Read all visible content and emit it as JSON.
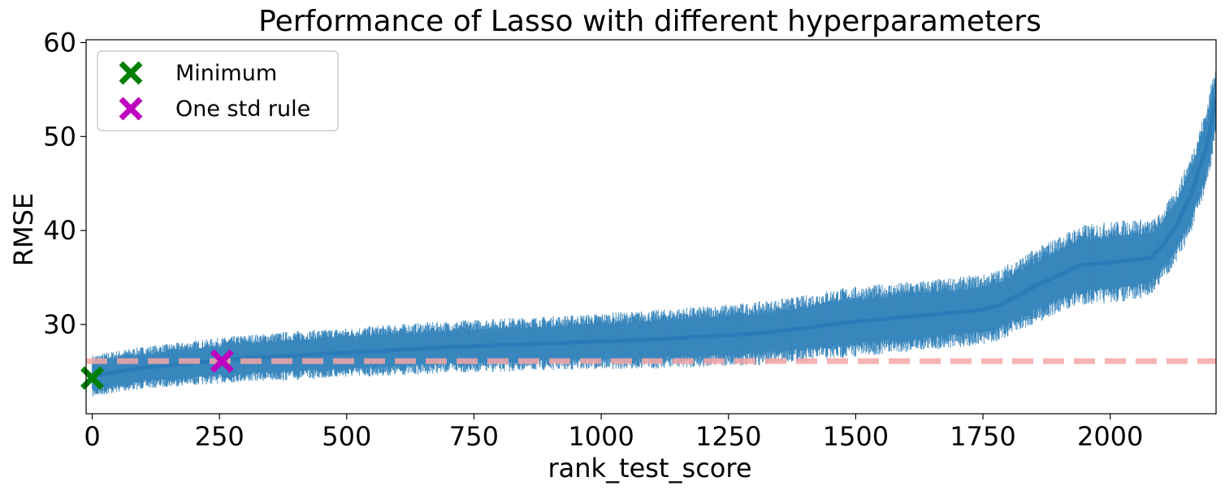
{
  "chart_data": {
    "type": "line",
    "title": "Performance of Lasso with different hyperparameters",
    "xlabel": "rank_test_score",
    "ylabel": "RMSE",
    "xlim": [
      -12,
      2208
    ],
    "ylim": [
      20.5,
      60.3
    ],
    "xticks": [
      0,
      250,
      500,
      750,
      1000,
      1250,
      1500,
      1750,
      2000
    ],
    "yticks": [
      30,
      40,
      50,
      60
    ],
    "grid": false,
    "legend": {
      "placement": "top-left",
      "entries": [
        {
          "label": "Minimum",
          "marker": "x",
          "color": "#008000"
        },
        {
          "label": "One std rule",
          "marker": "x",
          "color": "#bf00bf"
        }
      ]
    },
    "series": [
      {
        "kind": "errorbar-line",
        "color": "#1f77b4",
        "x": [
          0,
          50,
          100,
          200,
          300,
          400,
          500,
          600,
          700,
          800,
          900,
          1000,
          1100,
          1200,
          1300,
          1400,
          1450,
          1500,
          1600,
          1700,
          1750,
          1780,
          1850,
          1900,
          1940,
          2000,
          2050,
          2080,
          2100,
          2130,
          2160,
          2190,
          2208
        ],
        "y": [
          24.5,
          25.0,
          25.4,
          25.9,
          26.4,
          26.7,
          27.0,
          27.3,
          27.6,
          27.8,
          28.0,
          28.2,
          28.4,
          28.7,
          29.0,
          29.6,
          30.0,
          30.3,
          30.8,
          31.3,
          31.6,
          32.0,
          34.0,
          35.3,
          36.3,
          36.6,
          36.9,
          37.1,
          38.2,
          40.5,
          44.0,
          49.0,
          54.0
        ],
        "err": [
          1.8,
          1.8,
          1.8,
          1.9,
          2.0,
          2.1,
          2.1,
          2.2,
          2.2,
          2.3,
          2.3,
          2.4,
          2.5,
          2.6,
          2.7,
          2.8,
          3.0,
          3.0,
          3.0,
          3.0,
          3.0,
          3.1,
          3.2,
          3.3,
          3.4,
          3.5,
          3.5,
          3.2,
          3.0,
          3.2,
          3.4,
          3.5,
          3.5
        ]
      }
    ],
    "reference_line": {
      "y": 26.1,
      "style": "dashed",
      "color": "#f4a6a6"
    },
    "points": [
      {
        "name": "Minimum",
        "x": 0,
        "y": 24.3,
        "color": "#008000"
      },
      {
        "name": "One std rule",
        "x": 255,
        "y": 26.1,
        "color": "#bf00bf"
      }
    ]
  }
}
